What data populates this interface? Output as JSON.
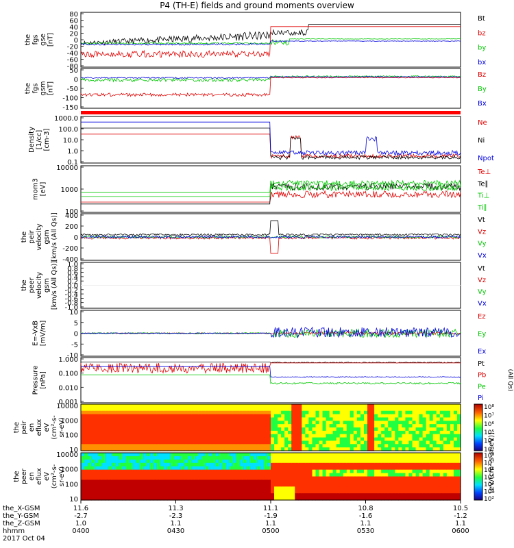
{
  "title": "P4 (TH-E) fields and ground moments overview",
  "colors": {
    "black": "#000000",
    "red": "#e00000",
    "green": "#00c800",
    "blue": "#0000e0"
  },
  "chart_data": [
    {
      "type": "line",
      "ylabels": [
        "the",
        "fgs",
        "gse",
        "[nT]"
      ],
      "yticks": [
        "80",
        "60",
        "40",
        "20",
        "0",
        "-20",
        "-40",
        "-60",
        "-80"
      ],
      "ylim": [
        -90,
        90
      ],
      "series": [
        {
          "name": "Bt",
          "color": "black"
        },
        {
          "name": "bz",
          "color": "red"
        },
        {
          "name": "by",
          "color": "green"
        },
        {
          "name": "bx",
          "color": "blue"
        }
      ]
    },
    {
      "type": "line",
      "ylabels": [
        "the",
        "fgs",
        "gsm",
        "[nT]"
      ],
      "yticks": [
        "50",
        "0",
        "-50",
        "-100",
        "-150"
      ],
      "ylim": [
        -180,
        55
      ],
      "series": [
        {
          "name": "Bz",
          "color": "red"
        },
        {
          "name": "By",
          "color": "green"
        },
        {
          "name": "Bx",
          "color": "blue"
        }
      ]
    },
    {
      "type": "line",
      "ylabels": [
        "Density",
        "[1/cc]",
        "[cm-3]"
      ],
      "yticks": [
        "1000.0",
        "100.0",
        "10.0",
        "1.0",
        "0.1"
      ],
      "scale": "log",
      "series": [
        {
          "name": "Ne",
          "color": "red"
        },
        {
          "name": "Ni",
          "color": "black"
        },
        {
          "name": "Npot",
          "color": "blue"
        }
      ]
    },
    {
      "type": "line",
      "ylabels": [
        "mom3",
        "[eV]"
      ],
      "yticks": [
        "10000",
        "1000",
        "100"
      ],
      "scale": "log",
      "series": [
        {
          "name": "Te⊥",
          "color": "red"
        },
        {
          "name": "Te∥",
          "color": "black"
        },
        {
          "name": "Ti⊥",
          "color": "green"
        },
        {
          "name": "Ti∥",
          "color": "green"
        }
      ]
    },
    {
      "type": "line",
      "ylabels": [
        "the",
        "peir",
        "velocity",
        "gsm",
        "[km/s (All Qs)]"
      ],
      "yticks": [
        "400",
        "200",
        "0",
        "-200",
        "-400"
      ],
      "ylim": [
        -420,
        420
      ],
      "series": [
        {
          "name": "Vt",
          "color": "black"
        },
        {
          "name": "Vz",
          "color": "red"
        },
        {
          "name": "Vy",
          "color": "green"
        },
        {
          "name": "Vx",
          "color": "blue"
        }
      ]
    },
    {
      "type": "line",
      "ylabels": [
        "the",
        "peer",
        "velocity",
        "gsm",
        "[km/s (All Qs)]"
      ],
      "yticks": [
        "1.0",
        "0.8",
        "0.6",
        "0.4",
        "0.2",
        "0.0",
        "-0.2",
        "-0.4",
        "-0.6",
        "-0.8",
        "-1.0"
      ],
      "ylim": [
        -1,
        1
      ],
      "series": [
        {
          "name": "Vt",
          "color": "black"
        },
        {
          "name": "Vz",
          "color": "red"
        },
        {
          "name": "Vy",
          "color": "green"
        },
        {
          "name": "Vx",
          "color": "blue"
        }
      ]
    },
    {
      "type": "line",
      "ylabels": [
        "E=-VxB",
        "[mV/m]"
      ],
      "yticks": [
        "10",
        "5",
        "0",
        "-5",
        "-10"
      ],
      "ylim": [
        -12,
        12
      ],
      "series": [
        {
          "name": "Ez",
          "color": "red"
        },
        {
          "name": "Ey",
          "color": "green"
        },
        {
          "name": "Ex",
          "color": "blue"
        }
      ]
    },
    {
      "type": "line",
      "ylabels": [
        "Pressure",
        "[nPa]"
      ],
      "yticks": [
        "1.000",
        "0.100",
        "0.010",
        "0.001"
      ],
      "scale": "log",
      "right_label": "(All Qs)",
      "series": [
        {
          "name": "Pt",
          "color": "black"
        },
        {
          "name": "Pb",
          "color": "red"
        },
        {
          "name": "Pe",
          "color": "green"
        },
        {
          "name": "Pi",
          "color": "blue"
        }
      ]
    },
    {
      "type": "heatmap",
      "ylabels": [
        "the",
        "peir",
        "en",
        "eflux",
        "eV",
        "(cm²-s-",
        "sr-eV)"
      ],
      "yticks": [
        "10000",
        "1000",
        "100",
        "10"
      ]
    },
    {
      "type": "heatmap",
      "ylabels": [
        "the",
        "peer",
        "en",
        "eflux",
        "eV",
        "(cm²-s-",
        "sr-eV)"
      ],
      "yticks": [
        "10000",
        "1000",
        "100",
        "10"
      ]
    }
  ],
  "colorbar1": {
    "ticks": [
      "10⁸",
      "10⁷",
      "10⁶",
      "10⁵",
      "10⁴",
      "10³"
    ]
  },
  "colorbar2": {
    "ticks": [
      "10⁸",
      "10⁷",
      "10⁶",
      "10⁵",
      "10⁴",
      "10³",
      "10²"
    ]
  },
  "colorbar_label": "[eV/(cm²-s-sr-eV)]",
  "x_axis": {
    "labels": [
      "the_X-GSM",
      "the_Y-GSM",
      "the_Z-GSM",
      "hhmm",
      "2017 Oct 04"
    ],
    "ticks": [
      {
        "x": "11.6",
        "y": "-2.7",
        "z": "1.0",
        "t": "0400"
      },
      {
        "x": "11.3",
        "y": "-2.3",
        "z": "1.1",
        "t": "0430"
      },
      {
        "x": "11.1",
        "y": "-1.9",
        "z": "1.1",
        "t": "0500"
      },
      {
        "x": "10.8",
        "y": "-1.6",
        "z": "1.1",
        "t": "0530"
      },
      {
        "x": "10.5",
        "y": "-1.2",
        "z": "1.1",
        "t": "0600"
      }
    ]
  }
}
